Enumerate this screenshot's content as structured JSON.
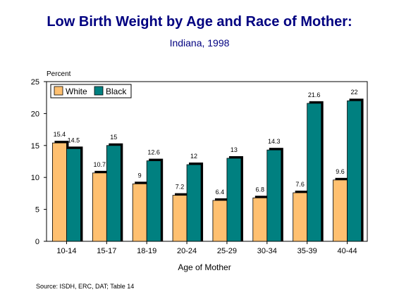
{
  "page": {
    "title": "Low Birth Weight by Age and Race of Mother:",
    "subtitle": "Indiana, 1998",
    "source": "Source:  ISDH, ERC, DAT; Table 14"
  },
  "chart_data": {
    "type": "bar",
    "title": "Low Birth Weight by Age and Race of Mother:",
    "subtitle": "Indiana, 1998",
    "xlabel": "Age of Mother",
    "ylabel": "Percent",
    "ylim": [
      0,
      25
    ],
    "yticks": [
      0,
      5,
      10,
      15,
      20,
      25
    ],
    "grid": false,
    "legend_position": "top-left",
    "categories": [
      "10-14",
      "15-17",
      "18-19",
      "20-24",
      "25-29",
      "30-34",
      "35-39",
      "40-44"
    ],
    "series": [
      {
        "name": "White",
        "color": "#FFC070",
        "values": [
          15.4,
          10.7,
          9,
          7.2,
          6.4,
          6.8,
          7.6,
          9.6
        ],
        "labels": [
          "15.4",
          "10.7",
          "9",
          "7.2",
          "6.4",
          "6.8",
          "7.6",
          "9.6"
        ]
      },
      {
        "name": "Black",
        "color": "#008080",
        "values": [
          14.5,
          15,
          12.6,
          12,
          13,
          14.3,
          21.6,
          22
        ],
        "labels": [
          "14.5",
          "15",
          "12.6",
          "12",
          "13",
          "14.3",
          "21.6",
          "22"
        ]
      }
    ]
  }
}
